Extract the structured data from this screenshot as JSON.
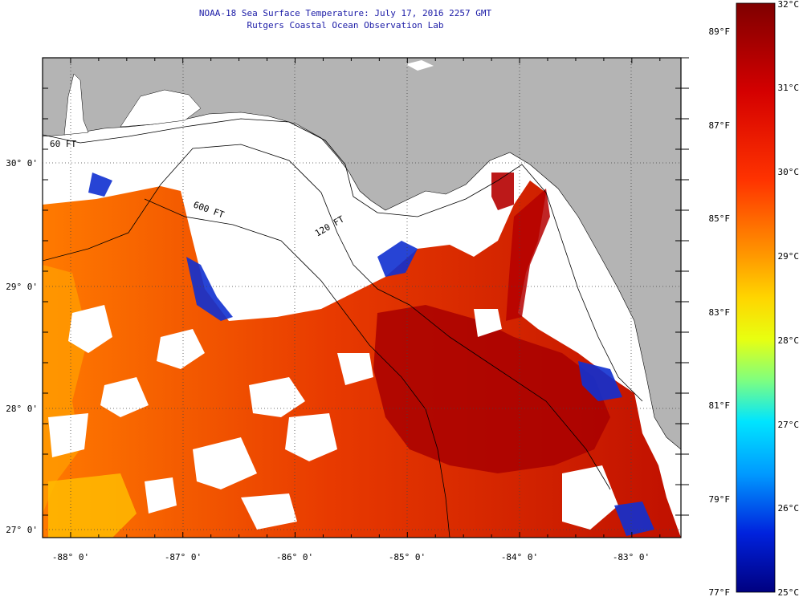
{
  "title": {
    "line1": "NOAA-18 Sea Surface Temperature:  July 17, 2016 2257 GMT",
    "line2": "Rutgers Coastal Ocean Observation Lab"
  },
  "latitude_labels": [
    "30° 0'",
    "29° 0'",
    "28° 0'",
    "27° 0'"
  ],
  "longitude_labels": [
    "-88° 0'",
    "-87° 0'",
    "-86° 0'",
    "-85° 0'",
    "-84° 0'",
    "-83° 0'"
  ],
  "isobath_labels": [
    "60 FT",
    "600 FT",
    "120 FT"
  ],
  "colorbar": {
    "celsius_labels": [
      "32°C",
      "31°C",
      "30°C",
      "29°C",
      "28°C",
      "27°C",
      "26°C",
      "25°C"
    ],
    "fahrenheit_labels": [
      "89°F",
      "87°F",
      "85°F",
      "83°F",
      "81°F",
      "79°F",
      "77°F"
    ],
    "stops": [
      {
        "offset": "0%",
        "color": "#7f0000"
      },
      {
        "offset": "15%",
        "color": "#d40000"
      },
      {
        "offset": "30%",
        "color": "#ff3300"
      },
      {
        "offset": "43%",
        "color": "#ff9900"
      },
      {
        "offset": "50%",
        "color": "#ffd500"
      },
      {
        "offset": "57%",
        "color": "#e8ff10"
      },
      {
        "offset": "64%",
        "color": "#7fff7f"
      },
      {
        "offset": "71%",
        "color": "#00e5ff"
      },
      {
        "offset": "80%",
        "color": "#0099ff"
      },
      {
        "offset": "90%",
        "color": "#0022dd"
      },
      {
        "offset": "100%",
        "color": "#000080"
      }
    ]
  },
  "colors": {
    "land": "#b4b4b4",
    "no_data": "#ffffff",
    "title_text": "#1a1aa6"
  }
}
